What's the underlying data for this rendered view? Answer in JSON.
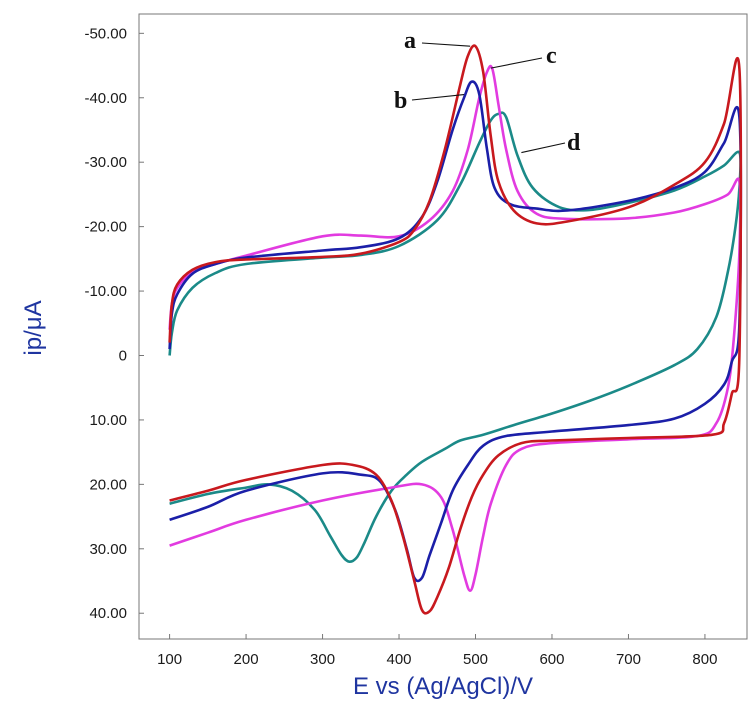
{
  "chart_data": {
    "type": "line",
    "xlabel": "E vs (Ag/AgCl)/V",
    "ylabel": "ip/μA",
    "xlim": [
      60,
      855
    ],
    "ylim": [
      44,
      -53
    ],
    "y_inverted": true,
    "grid": false,
    "legend": "none",
    "xticks": [
      100,
      200,
      300,
      400,
      500,
      600,
      700,
      800
    ],
    "yticks": [
      {
        "value": -50,
        "label": "-50.00"
      },
      {
        "value": -40,
        "label": "-40.00"
      },
      {
        "value": -30,
        "label": "-30.00"
      },
      {
        "value": -20,
        "label": "-20.00"
      },
      {
        "value": -10,
        "label": "-10.00"
      },
      {
        "value": 0,
        "label": "0"
      },
      {
        "value": 10,
        "label": "10.00"
      },
      {
        "value": 20,
        "label": "20.00"
      },
      {
        "value": 30,
        "label": "30.00"
      },
      {
        "value": 40,
        "label": "40.00"
      }
    ],
    "series": [
      {
        "label": "a",
        "color": "#c8191e",
        "points": [
          [
            100,
            -2
          ],
          [
            103,
            -8
          ],
          [
            110,
            -11
          ],
          [
            130,
            -13.3
          ],
          [
            160,
            -14.5
          ],
          [
            200,
            -14.9
          ],
          [
            300,
            -15.3
          ],
          [
            350,
            -15.8
          ],
          [
            400,
            -17.6
          ],
          [
            420,
            -19.5
          ],
          [
            440,
            -24
          ],
          [
            460,
            -32
          ],
          [
            480,
            -42
          ],
          [
            490,
            -46.5
          ],
          [
            500,
            -48
          ],
          [
            510,
            -44
          ],
          [
            520,
            -34
          ],
          [
            530,
            -27
          ],
          [
            550,
            -22.5
          ],
          [
            580,
            -20.5
          ],
          [
            620,
            -20.8
          ],
          [
            700,
            -23
          ],
          [
            760,
            -26.5
          ],
          [
            800,
            -30
          ],
          [
            825,
            -36
          ],
          [
            845,
            -44.5
          ],
          [
            845,
            0
          ],
          [
            835,
            6
          ],
          [
            825,
            10.5
          ],
          [
            810,
            12.3
          ],
          [
            700,
            12.8
          ],
          [
            600,
            13.2
          ],
          [
            560,
            13.6
          ],
          [
            530,
            15.5
          ],
          [
            510,
            18.5
          ],
          [
            495,
            22
          ],
          [
            480,
            27
          ],
          [
            465,
            33
          ],
          [
            450,
            37.5
          ],
          [
            440,
            39.7
          ],
          [
            430,
            39.5
          ],
          [
            420,
            35
          ],
          [
            405,
            28
          ],
          [
            390,
            22.5
          ],
          [
            370,
            18.5
          ],
          [
            340,
            17
          ],
          [
            300,
            17
          ],
          [
            200,
            19.3
          ],
          [
            150,
            21
          ],
          [
            100,
            22.5
          ]
        ]
      },
      {
        "label": "b",
        "color": "#1b1fa8",
        "points": [
          [
            100,
            -1
          ],
          [
            103,
            -6.5
          ],
          [
            110,
            -9.5
          ],
          [
            130,
            -12.7
          ],
          [
            160,
            -14.2
          ],
          [
            200,
            -15.2
          ],
          [
            300,
            -16.3
          ],
          [
            350,
            -16.8
          ],
          [
            400,
            -18.2
          ],
          [
            430,
            -21.5
          ],
          [
            450,
            -27
          ],
          [
            470,
            -35
          ],
          [
            485,
            -40
          ],
          [
            495,
            -42.5
          ],
          [
            505,
            -40.5
          ],
          [
            515,
            -32
          ],
          [
            525,
            -26
          ],
          [
            545,
            -23.5
          ],
          [
            580,
            -22.8
          ],
          [
            620,
            -22.5
          ],
          [
            700,
            -24
          ],
          [
            760,
            -26
          ],
          [
            800,
            -28.5
          ],
          [
            825,
            -33
          ],
          [
            845,
            -37
          ],
          [
            845,
            -5
          ],
          [
            835,
            1
          ],
          [
            825,
            4.5
          ],
          [
            800,
            7.5
          ],
          [
            760,
            9.8
          ],
          [
            700,
            10.8
          ],
          [
            600,
            11.8
          ],
          [
            540,
            12.5
          ],
          [
            510,
            14
          ],
          [
            490,
            17
          ],
          [
            470,
            21
          ],
          [
            455,
            26
          ],
          [
            440,
            31
          ],
          [
            430,
            34.5
          ],
          [
            420,
            34.5
          ],
          [
            410,
            30
          ],
          [
            395,
            24
          ],
          [
            375,
            19.5
          ],
          [
            350,
            18.5
          ],
          [
            300,
            18.3
          ],
          [
            200,
            21
          ],
          [
            150,
            23.5
          ],
          [
            100,
            25.5
          ]
        ]
      },
      {
        "label": "c",
        "color": "#e23be0",
        "points": [
          [
            100,
            -4
          ],
          [
            103,
            -8
          ],
          [
            110,
            -10.5
          ],
          [
            130,
            -13
          ],
          [
            160,
            -14.2
          ],
          [
            200,
            -15.5
          ],
          [
            300,
            -18.5
          ],
          [
            350,
            -18.6
          ],
          [
            400,
            -18.5
          ],
          [
            440,
            -21
          ],
          [
            470,
            -25.5
          ],
          [
            490,
            -32
          ],
          [
            505,
            -40
          ],
          [
            515,
            -44
          ],
          [
            522,
            -44.5
          ],
          [
            530,
            -39
          ],
          [
            540,
            -32
          ],
          [
            555,
            -25.5
          ],
          [
            580,
            -22
          ],
          [
            620,
            -21.2
          ],
          [
            700,
            -21.3
          ],
          [
            760,
            -22.2
          ],
          [
            800,
            -23.5
          ],
          [
            830,
            -25
          ],
          [
            845,
            -27
          ],
          [
            845,
            -16
          ],
          [
            838,
            -3
          ],
          [
            830,
            5
          ],
          [
            815,
            10.5
          ],
          [
            790,
            12.5
          ],
          [
            700,
            13
          ],
          [
            600,
            13.6
          ],
          [
            560,
            14.5
          ],
          [
            540,
            17
          ],
          [
            520,
            23
          ],
          [
            510,
            28
          ],
          [
            500,
            34
          ],
          [
            493,
            36.5
          ],
          [
            485,
            34
          ],
          [
            470,
            27
          ],
          [
            455,
            22
          ],
          [
            430,
            20
          ],
          [
            390,
            20.5
          ],
          [
            300,
            22.5
          ],
          [
            200,
            25.5
          ],
          [
            150,
            27.5
          ],
          [
            100,
            29.5
          ]
        ]
      },
      {
        "label": "d",
        "color": "#1b8a88",
        "points": [
          [
            100,
            0
          ],
          [
            103,
            -3.5
          ],
          [
            110,
            -7
          ],
          [
            130,
            -10.5
          ],
          [
            160,
            -12.8
          ],
          [
            200,
            -14.2
          ],
          [
            300,
            -15.2
          ],
          [
            350,
            -15.6
          ],
          [
            400,
            -17
          ],
          [
            450,
            -21
          ],
          [
            480,
            -26.5
          ],
          [
            505,
            -33
          ],
          [
            520,
            -36.5
          ],
          [
            530,
            -37.5
          ],
          [
            540,
            -37
          ],
          [
            555,
            -31
          ],
          [
            575,
            -26
          ],
          [
            610,
            -23
          ],
          [
            650,
            -22.6
          ],
          [
            700,
            -23.7
          ],
          [
            760,
            -25.6
          ],
          [
            800,
            -27.8
          ],
          [
            825,
            -29.5
          ],
          [
            845,
            -31.5
          ],
          [
            845,
            -26
          ],
          [
            840,
            -20
          ],
          [
            830,
            -13
          ],
          [
            815,
            -6
          ],
          [
            790,
            -1
          ],
          [
            760,
            1.5
          ],
          [
            700,
            4.7
          ],
          [
            650,
            7
          ],
          [
            600,
            9
          ],
          [
            550,
            10.8
          ],
          [
            510,
            12.3
          ],
          [
            480,
            13.2
          ],
          [
            460,
            14.5
          ],
          [
            430,
            16.5
          ],
          [
            410,
            18.5
          ],
          [
            390,
            21
          ],
          [
            370,
            25
          ],
          [
            355,
            29
          ],
          [
            345,
            31.3
          ],
          [
            335,
            32
          ],
          [
            325,
            31
          ],
          [
            310,
            28
          ],
          [
            290,
            24
          ],
          [
            260,
            21
          ],
          [
            230,
            20
          ],
          [
            200,
            20.5
          ],
          [
            150,
            21.5
          ],
          [
            100,
            23
          ]
        ]
      }
    ],
    "annotations": [
      {
        "text": "a",
        "series": "a",
        "target": [
          493,
          -48
        ]
      },
      {
        "text": "b",
        "series": "b",
        "target": [
          485,
          -40.5
        ]
      },
      {
        "text": "c",
        "series": "c",
        "target": [
          520,
          -44.6
        ]
      },
      {
        "text": "d",
        "series": "d",
        "target": [
          560,
          -31.5
        ]
      }
    ]
  }
}
